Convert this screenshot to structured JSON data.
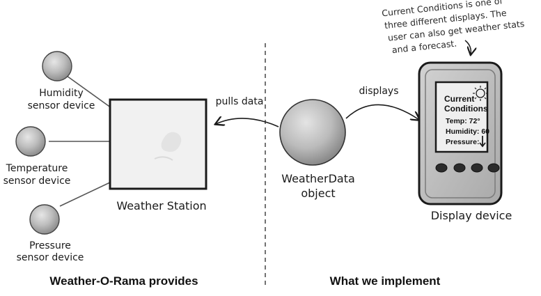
{
  "annotation": {
    "line1": "Current Conditions is one of",
    "line2": "three different displays. The",
    "line3": "user can also get weather stats",
    "line4": "and a forecast."
  },
  "sensors": [
    {
      "line1": "Humidity",
      "line2": "sensor device"
    },
    {
      "line1": "Temperature",
      "line2": "sensor device"
    },
    {
      "line1": "Pressure",
      "line2": "sensor device"
    }
  ],
  "weather_station": {
    "label": "Weather Station"
  },
  "arrows": {
    "pulls": "pulls data",
    "displays": "displays"
  },
  "weather_data": {
    "line1": "WeatherData",
    "line2": "object"
  },
  "display": {
    "label": "Display device",
    "screen": {
      "title1": "Current",
      "title2": "Conditions",
      "temp": "Temp: 72°",
      "humidity": "Humidity: 60",
      "pressure": "Pressure:"
    }
  },
  "sections": {
    "left": "Weather-O-Rama provides",
    "right": "What we implement"
  }
}
